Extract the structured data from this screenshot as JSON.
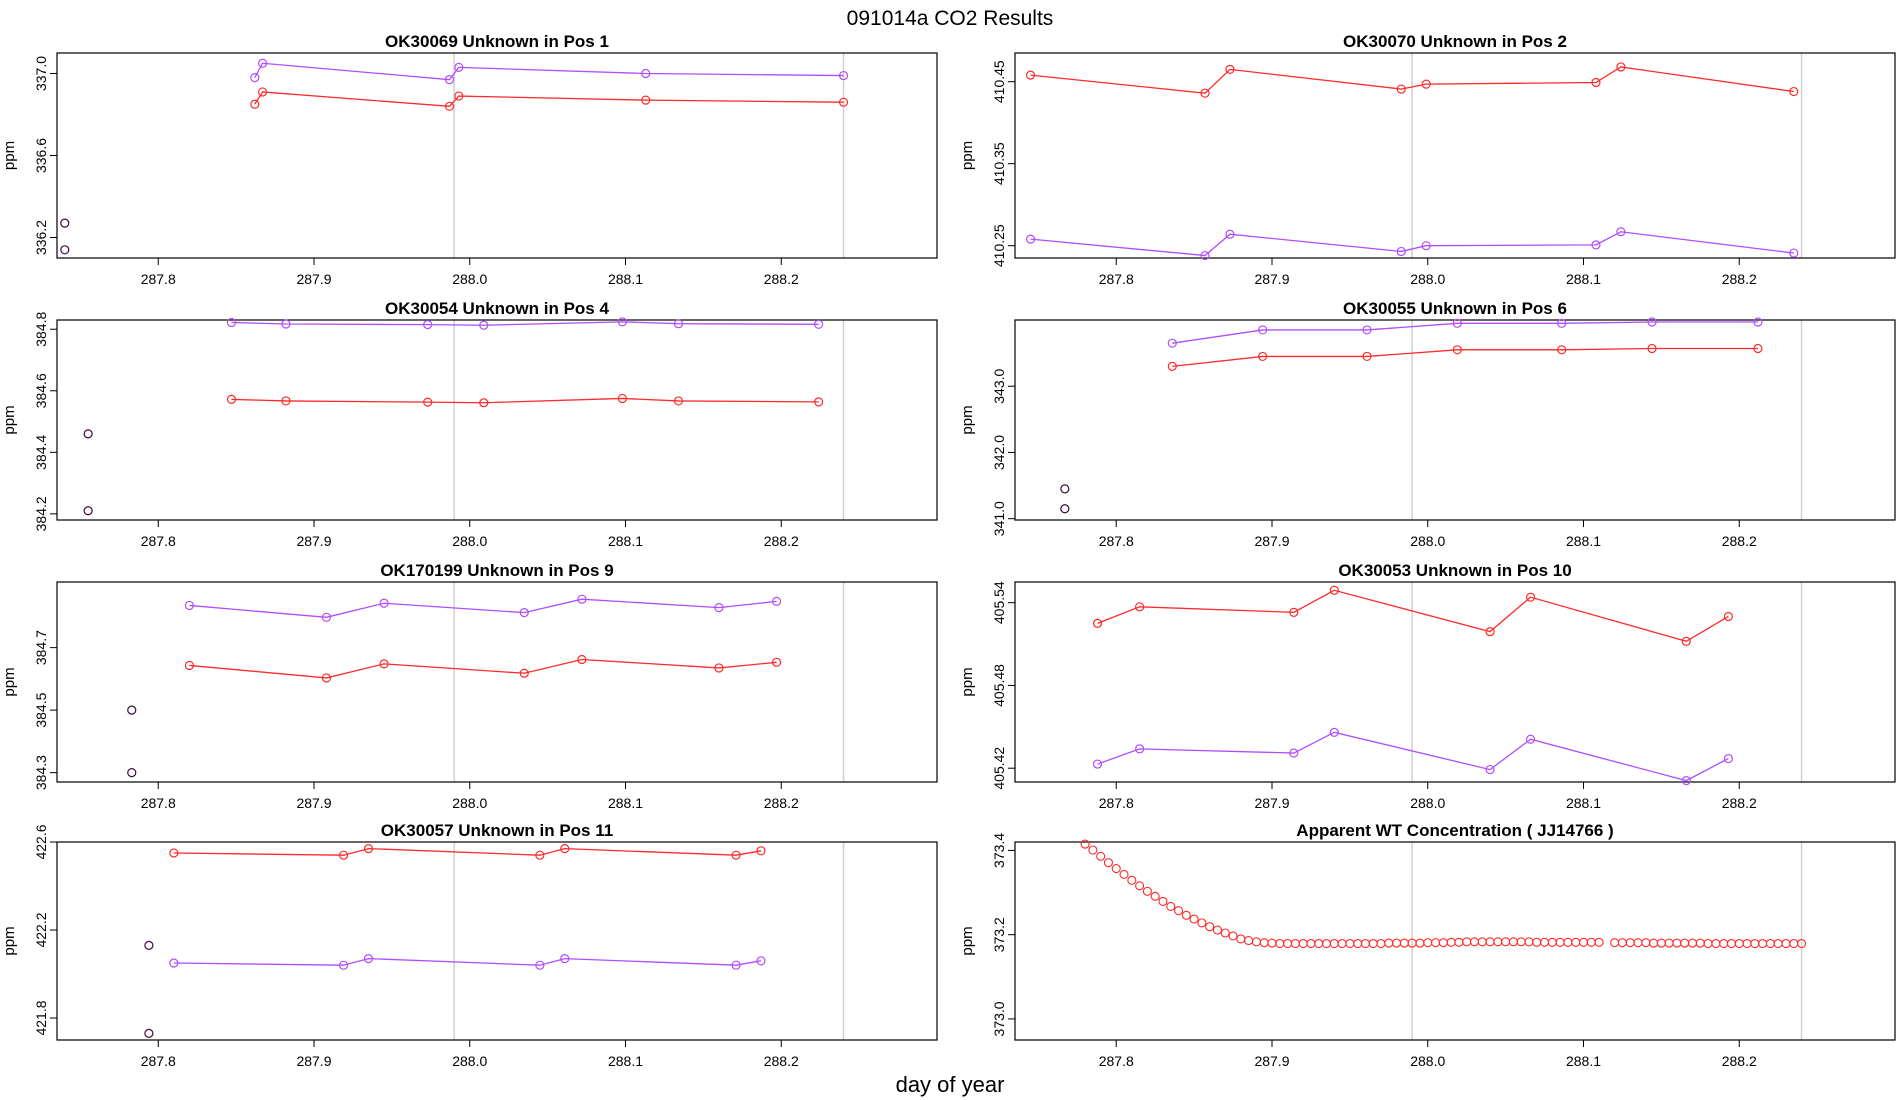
{
  "figure": {
    "title": "091014a  CO2 Results",
    "xlabel": "day of year"
  },
  "colors": {
    "red": "#ff2a2a",
    "purple": "#b04dff",
    "early": "#3a0a3a",
    "vline": "#d0d0d0",
    "frame": "#000000"
  },
  "chart_data": [
    {
      "type": "line",
      "title": "OK30069    Unknown in Pos 1",
      "ylabel": "ppm",
      "xlim": [
        287.735,
        288.3
      ],
      "xticks": [
        287.8,
        287.9,
        288.0,
        288.1,
        288.2
      ],
      "xtick_labels": [
        "287.8",
        "287.9",
        "288.0",
        "288.1",
        "288.2"
      ],
      "ylim": [
        336.1,
        337.1
      ],
      "yticks": [
        336.2,
        336.6,
        337.0
      ],
      "ytick_labels": [
        "336.2",
        "336.6",
        "337.0"
      ],
      "vlines": [
        287.99,
        288.24
      ],
      "series": [
        {
          "name": "purple",
          "color": "purple",
          "x": [
            287.862,
            287.867,
            287.987,
            287.993,
            288.113,
            288.24
          ],
          "y": [
            336.98,
            337.05,
            336.97,
            337.03,
            337.0,
            336.99
          ]
        },
        {
          "name": "red",
          "color": "red",
          "x": [
            287.862,
            287.867,
            287.987,
            287.993,
            288.113,
            288.24
          ],
          "y": [
            336.85,
            336.91,
            336.84,
            336.89,
            336.87,
            336.86
          ]
        }
      ],
      "early_points": {
        "x": [
          287.74,
          287.74
        ],
        "y": [
          336.27,
          336.14
        ]
      }
    },
    {
      "type": "line",
      "title": "OK30070    Unknown in Pos 2",
      "ylabel": "ppm",
      "xlim": [
        287.735,
        288.3
      ],
      "xticks": [
        287.8,
        287.9,
        288.0,
        288.1,
        288.2
      ],
      "xtick_labels": [
        "287.8",
        "287.9",
        "288.0",
        "288.1",
        "288.2"
      ],
      "ylim": [
        410.235,
        410.485
      ],
      "yticks": [
        410.25,
        410.35,
        410.45
      ],
      "ytick_labels": [
        "410.25",
        "410.35",
        "410.45"
      ],
      "vlines": [
        287.99,
        288.24
      ],
      "series": [
        {
          "name": "red",
          "color": "red",
          "x": [
            287.745,
            287.857,
            287.873,
            287.983,
            287.999,
            288.108,
            288.124,
            288.235
          ],
          "y": [
            410.458,
            410.436,
            410.465,
            410.441,
            410.447,
            410.449,
            410.468,
            410.438
          ]
        },
        {
          "name": "purple",
          "color": "purple",
          "x": [
            287.745,
            287.857,
            287.873,
            287.983,
            287.999,
            288.108,
            288.124,
            288.235
          ],
          "y": [
            410.258,
            410.238,
            410.264,
            410.243,
            410.25,
            410.251,
            410.267,
            410.241
          ]
        }
      ]
    },
    {
      "type": "line",
      "title": "OK30054    Unknown in Pos 4",
      "ylabel": "ppm",
      "xlim": [
        287.735,
        288.3
      ],
      "xticks": [
        287.8,
        287.9,
        288.0,
        288.1,
        288.2
      ],
      "xtick_labels": [
        "287.8",
        "287.9",
        "288.0",
        "288.1",
        "288.2"
      ],
      "ylim": [
        384.18,
        384.83
      ],
      "yticks": [
        384.2,
        384.4,
        384.6,
        384.8
      ],
      "ytick_labels": [
        "384.2",
        "384.4",
        "384.6",
        "384.8"
      ],
      "vlines": [
        287.99,
        288.24
      ],
      "series": [
        {
          "name": "purple",
          "color": "purple",
          "x": [
            287.847,
            287.882,
            287.973,
            288.009,
            288.098,
            288.134,
            288.224
          ],
          "y": [
            384.822,
            384.817,
            384.815,
            384.813,
            384.824,
            384.818,
            384.816
          ]
        },
        {
          "name": "red",
          "color": "red",
          "x": [
            287.847,
            287.882,
            287.973,
            288.009,
            288.098,
            288.134,
            288.224
          ],
          "y": [
            384.572,
            384.567,
            384.563,
            384.561,
            384.575,
            384.567,
            384.564
          ]
        }
      ],
      "early_points": {
        "x": [
          287.755,
          287.755
        ],
        "y": [
          384.46,
          384.21
        ]
      }
    },
    {
      "type": "line",
      "title": "OK30055    Unknown in Pos 6",
      "ylabel": "ppm",
      "xlim": [
        287.735,
        288.3
      ],
      "xticks": [
        287.8,
        287.9,
        288.0,
        288.1,
        288.2
      ],
      "xtick_labels": [
        "287.8",
        "287.9",
        "288.0",
        "288.1",
        "288.2"
      ],
      "ylim": [
        340.98,
        344.0
      ],
      "yticks": [
        341.0,
        342.0,
        343.0
      ],
      "ytick_labels": [
        "341.0",
        "342.0",
        "343.0"
      ],
      "vlines": [
        287.99,
        288.24
      ],
      "series": [
        {
          "name": "purple",
          "color": "purple",
          "x": [
            287.836,
            287.894,
            287.961,
            288.019,
            288.086,
            288.144,
            288.212
          ],
          "y": [
            343.65,
            343.85,
            343.85,
            343.95,
            343.95,
            343.97,
            343.97
          ]
        },
        {
          "name": "red",
          "color": "red",
          "x": [
            287.836,
            287.894,
            287.961,
            288.019,
            288.086,
            288.144,
            288.212
          ],
          "y": [
            343.3,
            343.45,
            343.45,
            343.55,
            343.55,
            343.57,
            343.57
          ]
        }
      ],
      "early_points": {
        "x": [
          287.767,
          287.767
        ],
        "y": [
          341.45,
          341.15
        ]
      }
    },
    {
      "type": "line",
      "title": "OK170199    Unknown in Pos 9",
      "ylabel": "ppm",
      "xlim": [
        287.735,
        288.3
      ],
      "xticks": [
        287.8,
        287.9,
        288.0,
        288.1,
        288.2
      ],
      "xtick_labels": [
        "287.8",
        "287.9",
        "288.0",
        "288.1",
        "288.2"
      ],
      "ylim": [
        384.27,
        384.91
      ],
      "yticks": [
        384.3,
        384.5,
        384.7
      ],
      "ytick_labels": [
        "384.3",
        "384.5",
        "384.7"
      ],
      "vlines": [
        287.99,
        288.24
      ],
      "series": [
        {
          "name": "purple",
          "color": "purple",
          "x": [
            287.82,
            287.908,
            287.945,
            288.035,
            288.072,
            288.16,
            288.197
          ],
          "y": [
            384.835,
            384.797,
            384.842,
            384.812,
            384.855,
            384.828,
            384.848
          ]
        },
        {
          "name": "red",
          "color": "red",
          "x": [
            287.82,
            287.908,
            287.945,
            288.035,
            288.072,
            288.16,
            288.197
          ],
          "y": [
            384.643,
            384.603,
            384.648,
            384.618,
            384.662,
            384.635,
            384.653
          ]
        }
      ],
      "early_points": {
        "x": [
          287.783,
          287.783
        ],
        "y": [
          384.5,
          384.3
        ]
      }
    },
    {
      "type": "line",
      "title": "OK30053    Unknown in Pos 10",
      "ylabel": "ppm",
      "xlim": [
        287.735,
        288.3
      ],
      "xticks": [
        287.8,
        287.9,
        288.0,
        288.1,
        288.2
      ],
      "xtick_labels": [
        "287.8",
        "287.9",
        "288.0",
        "288.1",
        "288.2"
      ],
      "ylim": [
        405.41,
        405.555
      ],
      "yticks": [
        405.42,
        405.48,
        405.54
      ],
      "ytick_labels": [
        "405.42",
        "405.48",
        "405.54"
      ],
      "vlines": [
        287.99,
        288.24
      ],
      "series": [
        {
          "name": "red",
          "color": "red",
          "x": [
            287.788,
            287.815,
            287.914,
            287.94,
            288.04,
            288.066,
            288.166,
            288.193
          ],
          "y": [
            405.525,
            405.537,
            405.533,
            405.549,
            405.519,
            405.544,
            405.512,
            405.53
          ]
        },
        {
          "name": "purple",
          "color": "purple",
          "x": [
            287.788,
            287.815,
            287.914,
            287.94,
            288.04,
            288.066,
            288.166,
            288.193
          ],
          "y": [
            405.423,
            405.434,
            405.431,
            405.446,
            405.419,
            405.441,
            405.411,
            405.427
          ]
        }
      ]
    },
    {
      "type": "line",
      "title": "OK30057    Unknown in Pos 11",
      "ylabel": "ppm",
      "xlim": [
        287.735,
        288.3
      ],
      "xticks": [
        287.8,
        287.9,
        288.0,
        288.1,
        288.2
      ],
      "xtick_labels": [
        "287.8",
        "287.9",
        "288.0",
        "288.1",
        "288.2"
      ],
      "ylim": [
        421.7,
        422.6
      ],
      "yticks": [
        421.8,
        422.2,
        422.6
      ],
      "ytick_labels": [
        "421.8",
        "422.2",
        "422.6"
      ],
      "vlines": [
        287.99,
        288.24
      ],
      "series": [
        {
          "name": "red",
          "color": "red",
          "x": [
            287.81,
            287.919,
            287.935,
            288.045,
            288.061,
            288.171,
            288.187
          ],
          "y": [
            422.55,
            422.54,
            422.57,
            422.54,
            422.57,
            422.54,
            422.56
          ]
        },
        {
          "name": "purple",
          "color": "purple",
          "x": [
            287.81,
            287.919,
            287.935,
            288.045,
            288.061,
            288.171,
            288.187
          ],
          "y": [
            422.05,
            422.04,
            422.07,
            422.04,
            422.07,
            422.04,
            422.06
          ]
        }
      ],
      "early_points": {
        "x": [
          287.794,
          287.794
        ],
        "y": [
          422.13,
          421.73
        ]
      }
    },
    {
      "type": "scatter",
      "title": "Apparent WT Concentration ( JJ14766 )",
      "ylabel": "ppm",
      "xlim": [
        287.735,
        288.3
      ],
      "xticks": [
        287.8,
        287.9,
        288.0,
        288.1,
        288.2
      ],
      "xtick_labels": [
        "287.8",
        "287.9",
        "288.0",
        "288.1",
        "288.2"
      ],
      "ylim": [
        372.95,
        373.42
      ],
      "yticks": [
        373.0,
        373.2,
        373.4
      ],
      "ytick_labels": [
        "373.0",
        "373.2",
        "373.4"
      ],
      "vlines": [
        287.99,
        288.24
      ],
      "scatter": {
        "color": "red",
        "x": [
          287.78,
          287.785,
          287.79,
          287.795,
          287.8,
          287.805,
          287.81,
          287.815,
          287.82,
          287.825,
          287.83,
          287.835,
          287.84,
          287.845,
          287.85,
          287.855,
          287.86,
          287.865,
          287.87,
          287.875,
          287.88,
          287.885,
          287.89,
          287.895,
          287.9,
          287.905,
          287.91,
          287.915,
          287.92,
          287.925,
          287.93,
          287.935,
          287.94,
          287.945,
          287.95,
          287.955,
          287.96,
          287.965,
          287.97,
          287.975,
          287.98,
          287.985,
          287.99,
          287.995,
          288.0,
          288.005,
          288.01,
          288.015,
          288.02,
          288.025,
          288.03,
          288.035,
          288.04,
          288.045,
          288.05,
          288.055,
          288.06,
          288.065,
          288.07,
          288.075,
          288.08,
          288.085,
          288.09,
          288.095,
          288.1,
          288.105,
          288.11,
          288.12,
          288.125,
          288.13,
          288.135,
          288.14,
          288.145,
          288.15,
          288.155,
          288.16,
          288.165,
          288.17,
          288.175,
          288.18,
          288.185,
          288.19,
          288.195,
          288.2,
          288.205,
          288.21,
          288.215,
          288.22,
          288.225,
          288.23,
          288.235,
          288.24
        ],
        "y": [
          373.415,
          373.401,
          373.386,
          373.371,
          373.357,
          373.343,
          373.329,
          373.316,
          373.303,
          373.291,
          373.279,
          373.267,
          373.257,
          373.246,
          373.237,
          373.228,
          373.219,
          373.211,
          373.204,
          373.197,
          373.19,
          373.186,
          373.183,
          373.181,
          373.18,
          373.179,
          373.179,
          373.179,
          373.179,
          373.179,
          373.179,
          373.179,
          373.179,
          373.179,
          373.179,
          373.179,
          373.179,
          373.179,
          373.179,
          373.18,
          373.18,
          373.18,
          373.18,
          373.18,
          373.181,
          373.181,
          373.181,
          373.182,
          373.182,
          373.183,
          373.183,
          373.183,
          373.183,
          373.183,
          373.183,
          373.183,
          373.183,
          373.183,
          373.182,
          373.182,
          373.182,
          373.182,
          373.182,
          373.182,
          373.182,
          373.182,
          373.182,
          373.181,
          373.181,
          373.181,
          373.181,
          373.181,
          373.18,
          373.18,
          373.18,
          373.18,
          373.18,
          373.18,
          373.18,
          373.179,
          373.179,
          373.179,
          373.179,
          373.179,
          373.179,
          373.179,
          373.179,
          373.179,
          373.179,
          373.179,
          373.179,
          373.179
        ]
      }
    }
  ]
}
